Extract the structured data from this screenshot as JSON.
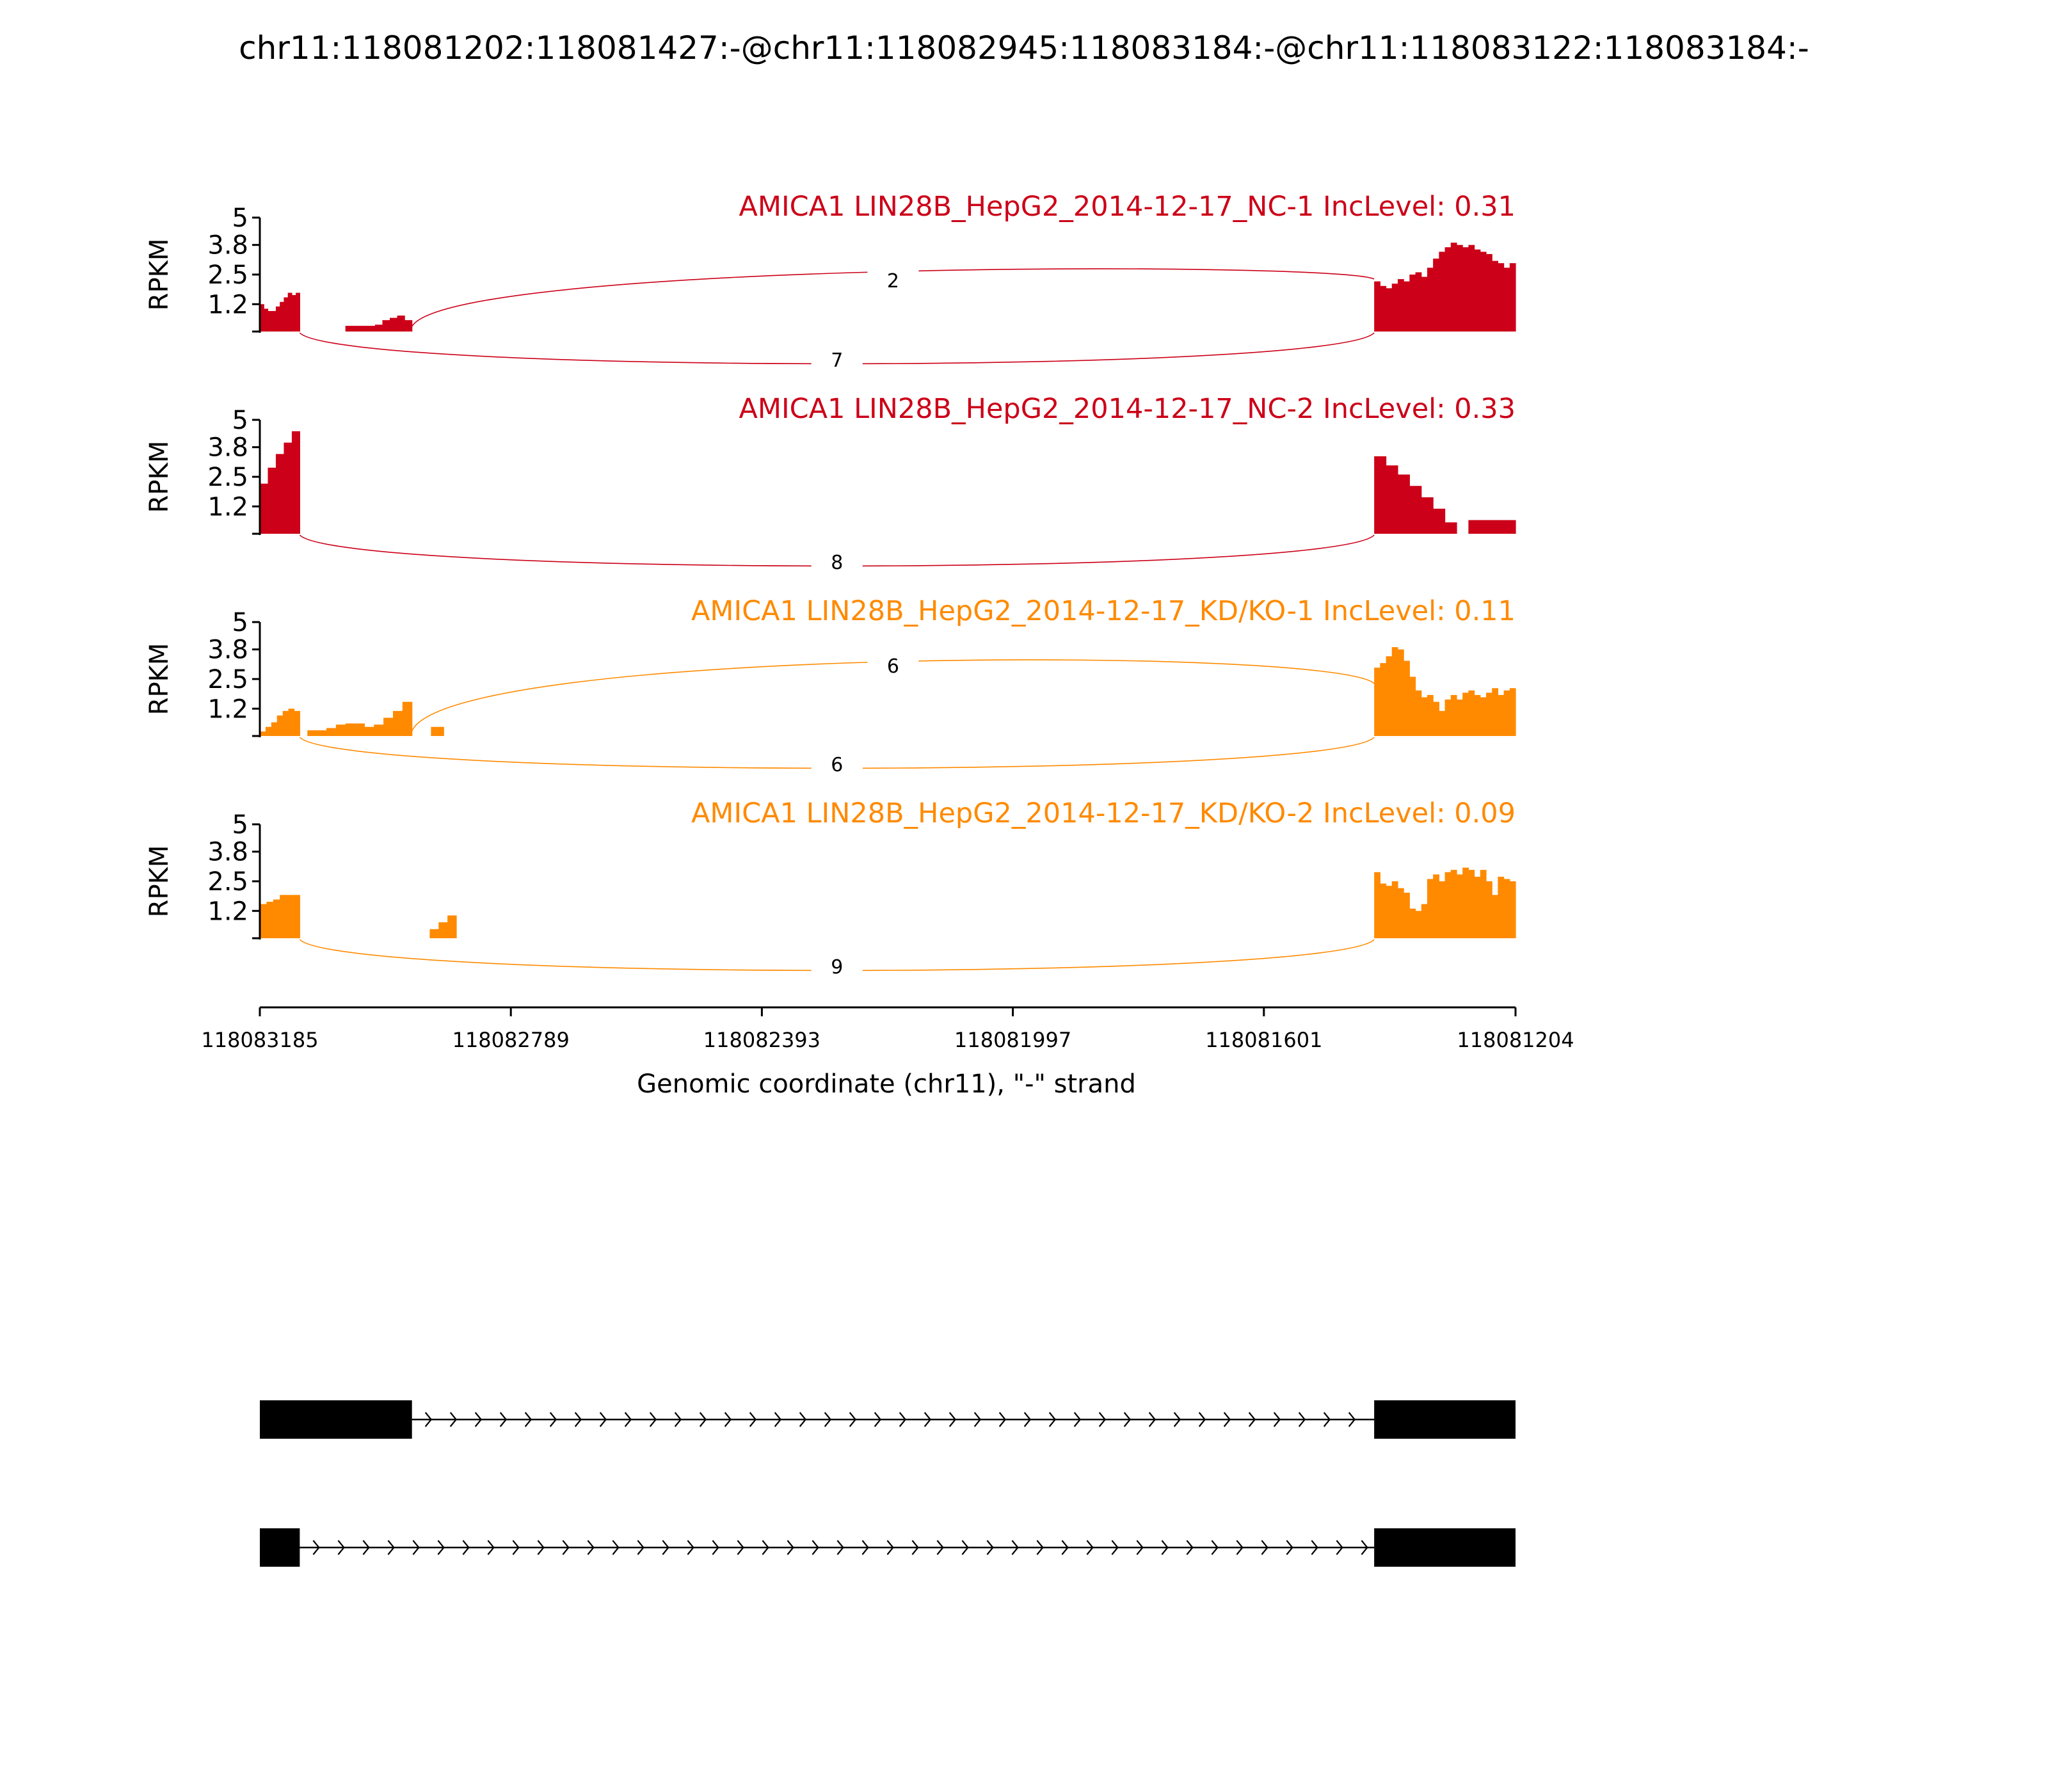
{
  "title": "chr11:118081202:118081427:-@chr11:118082945:118083184:-@chr11:118083122:118083184:-",
  "colors": {
    "nc": "#cc0018",
    "kd": "#ff8a00",
    "axis": "#000000"
  },
  "chart_data": {
    "type": "area",
    "y_axis": {
      "label": "RPKM",
      "ticks": [
        "5",
        "3.8",
        "2.5",
        "1.2"
      ],
      "tick_values": [
        5,
        3.8,
        2.5,
        1.2
      ],
      "ylim": [
        0,
        5
      ]
    },
    "x_axis": {
      "label": "Genomic coordinate (chr11), \"-\" strand",
      "ticks": [
        "118083185",
        "118082789",
        "118082393",
        "118081997",
        "118081601",
        "118081204"
      ],
      "tick_values": [
        118083185,
        118082789,
        118082393,
        118081997,
        118081601,
        118081204
      ],
      "range": [
        118083185,
        118081204
      ]
    },
    "tracks": [
      {
        "label": "AMICA1 LIN28B_HepG2_2014-12-17_NC-1 IncLevel: 0.31",
        "color_key": "nc",
        "coverage": [
          {
            "start": 118083185,
            "end": 118083122,
            "values": [
              1.2,
              1.0,
              0.9,
              0.9,
              1.1,
              1.3,
              1.5,
              1.7,
              1.6,
              1.7
            ]
          },
          {
            "start": 118083050,
            "end": 118082945,
            "values": [
              0.25,
              0.25,
              0.25,
              0.25,
              0.3,
              0.5,
              0.6,
              0.7,
              0.5
            ]
          },
          {
            "start": 118081427,
            "end": 118081204,
            "values": [
              2.2,
              2.0,
              1.9,
              2.1,
              2.3,
              2.2,
              2.5,
              2.6,
              2.4,
              2.8,
              3.2,
              3.5,
              3.7,
              3.9,
              3.8,
              3.7,
              3.8,
              3.6,
              3.5,
              3.4,
              3.1,
              3.0,
              2.8,
              3.0
            ]
          }
        ],
        "junctions": [
          {
            "from": 118082945,
            "to": 118081427,
            "count": "2",
            "side": "above"
          },
          {
            "from": 118083122,
            "to": 118081427,
            "count": "7",
            "side": "below"
          }
        ]
      },
      {
        "label": "AMICA1 LIN28B_HepG2_2014-12-17_NC-2 IncLevel: 0.33",
        "color_key": "nc",
        "coverage": [
          {
            "start": 118083185,
            "end": 118083122,
            "values": [
              2.2,
              2.9,
              3.5,
              4.0,
              4.5
            ]
          },
          {
            "start": 118081427,
            "end": 118081204,
            "values": [
              3.4,
              3.0,
              2.6,
              2.1,
              1.6,
              1.1,
              0.5,
              0.0,
              0.6,
              0.6,
              0.6,
              0.6
            ]
          }
        ],
        "junctions": [
          {
            "from": 118083122,
            "to": 118081427,
            "count": "8",
            "side": "below"
          }
        ]
      },
      {
        "label": "AMICA1 LIN28B_HepG2_2014-12-17_KD/KO-1 IncLevel: 0.11",
        "color_key": "kd",
        "coverage": [
          {
            "start": 118083185,
            "end": 118083122,
            "values": [
              0.2,
              0.4,
              0.6,
              0.9,
              1.1,
              1.2,
              1.1
            ]
          },
          {
            "start": 118083110,
            "end": 118082945,
            "values": [
              0.25,
              0.25,
              0.35,
              0.5,
              0.55,
              0.55,
              0.4,
              0.5,
              0.8,
              1.1,
              1.5
            ]
          },
          {
            "start": 118082915,
            "end": 118082895,
            "values": [
              0.4,
              0.4
            ]
          },
          {
            "start": 118081427,
            "end": 118081204,
            "values": [
              3.0,
              3.2,
              3.5,
              3.9,
              3.8,
              3.3,
              2.6,
              2.0,
              1.7,
              1.8,
              1.5,
              1.1,
              1.6,
              1.8,
              1.6,
              1.9,
              2.0,
              1.8,
              1.7,
              1.9,
              2.1,
              1.8,
              2.0,
              2.1
            ]
          }
        ],
        "junctions": [
          {
            "from": 118082945,
            "to": 118081427,
            "count": "6",
            "side": "above"
          },
          {
            "from": 118083122,
            "to": 118081427,
            "count": "6",
            "side": "below"
          }
        ]
      },
      {
        "label": "AMICA1 LIN28B_HepG2_2014-12-17_KD/KO-2 IncLevel: 0.09",
        "color_key": "kd",
        "coverage": [
          {
            "start": 118083185,
            "end": 118083122,
            "values": [
              1.5,
              1.6,
              1.7,
              1.9,
              1.9,
              1.9
            ]
          },
          {
            "start": 118082917,
            "end": 118082875,
            "values": [
              0.4,
              0.7,
              1.0
            ]
          },
          {
            "start": 118081427,
            "end": 118081204,
            "values": [
              2.9,
              2.4,
              2.3,
              2.5,
              2.2,
              2.0,
              1.3,
              1.2,
              1.5,
              2.6,
              2.8,
              2.5,
              2.9,
              3.0,
              2.8,
              3.1,
              3.0,
              2.7,
              3.0,
              2.5,
              1.9,
              2.7,
              2.6,
              2.5
            ]
          }
        ],
        "junctions": [
          {
            "from": 118083122,
            "to": 118081427,
            "count": "9",
            "side": "below"
          }
        ]
      }
    ],
    "transcripts": [
      {
        "exons": [
          [
            118083185,
            118082945
          ],
          [
            118081427,
            118081204
          ]
        ]
      },
      {
        "exons": [
          [
            118083185,
            118083122
          ],
          [
            118081427,
            118081204
          ]
        ]
      }
    ]
  }
}
